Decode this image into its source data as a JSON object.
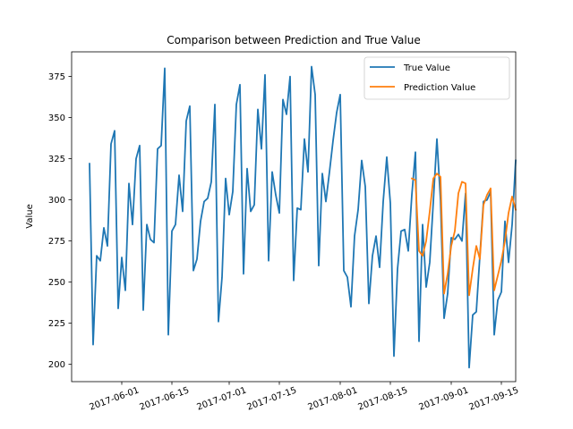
{
  "chart_data": {
    "type": "line",
    "title": "Comparison between Prediction and True Value",
    "xlabel": "",
    "ylabel": "Value",
    "x_type": "date",
    "xlim": [
      "2017-05-18",
      "2017-09-19"
    ],
    "ylim": [
      189.5,
      390
    ],
    "x_ticks": [
      "2017-06-01",
      "2017-06-15",
      "2017-07-01",
      "2017-07-15",
      "2017-08-01",
      "2017-08-15",
      "2017-09-01",
      "2017-09-15"
    ],
    "y_ticks": [
      200,
      225,
      250,
      275,
      300,
      325,
      350,
      375
    ],
    "grid": false,
    "legend_position": "top-right",
    "series": [
      {
        "name": "True Value",
        "color": "#1f77b4",
        "points": [
          [
            "2017-05-23",
            322
          ],
          [
            "2017-05-24",
            212
          ],
          [
            "2017-05-25",
            266
          ],
          [
            "2017-05-26",
            263
          ],
          [
            "2017-05-27",
            283
          ],
          [
            "2017-05-28",
            272
          ],
          [
            "2017-05-29",
            334
          ],
          [
            "2017-05-30",
            342
          ],
          [
            "2017-05-31",
            234
          ],
          [
            "2017-06-01",
            265
          ],
          [
            "2017-06-02",
            245
          ],
          [
            "2017-06-03",
            310
          ],
          [
            "2017-06-04",
            285
          ],
          [
            "2017-06-05",
            325
          ],
          [
            "2017-06-06",
            333
          ],
          [
            "2017-06-07",
            233
          ],
          [
            "2017-06-08",
            285
          ],
          [
            "2017-06-09",
            276
          ],
          [
            "2017-06-10",
            274
          ],
          [
            "2017-06-11",
            331
          ],
          [
            "2017-06-12",
            333
          ],
          [
            "2017-06-13",
            380
          ],
          [
            "2017-06-14",
            218
          ],
          [
            "2017-06-15",
            281
          ],
          [
            "2017-06-16",
            285
          ],
          [
            "2017-06-17",
            315
          ],
          [
            "2017-06-18",
            293
          ],
          [
            "2017-06-19",
            348
          ],
          [
            "2017-06-20",
            357
          ],
          [
            "2017-06-21",
            257
          ],
          [
            "2017-06-22",
            264
          ],
          [
            "2017-06-23",
            287
          ],
          [
            "2017-06-24",
            299
          ],
          [
            "2017-06-25",
            301
          ],
          [
            "2017-06-26",
            311
          ],
          [
            "2017-06-27",
            358
          ],
          [
            "2017-06-28",
            226
          ],
          [
            "2017-06-29",
            253
          ],
          [
            "2017-06-30",
            313
          ],
          [
            "2017-07-01",
            291
          ],
          [
            "2017-07-02",
            305
          ],
          [
            "2017-07-03",
            358
          ],
          [
            "2017-07-04",
            370
          ],
          [
            "2017-07-05",
            255
          ],
          [
            "2017-07-06",
            319
          ],
          [
            "2017-07-07",
            293
          ],
          [
            "2017-07-08",
            297
          ],
          [
            "2017-07-09",
            355
          ],
          [
            "2017-07-10",
            331
          ],
          [
            "2017-07-11",
            376
          ],
          [
            "2017-07-12",
            263
          ],
          [
            "2017-07-13",
            317
          ],
          [
            "2017-07-14",
            303
          ],
          [
            "2017-07-15",
            292
          ],
          [
            "2017-07-16",
            361
          ],
          [
            "2017-07-17",
            352
          ],
          [
            "2017-07-18",
            375
          ],
          [
            "2017-07-19",
            251
          ],
          [
            "2017-07-20",
            295
          ],
          [
            "2017-07-21",
            294
          ],
          [
            "2017-07-22",
            337
          ],
          [
            "2017-07-23",
            317
          ],
          [
            "2017-07-24",
            381
          ],
          [
            "2017-07-25",
            364
          ],
          [
            "2017-07-26",
            260
          ],
          [
            "2017-07-27",
            316
          ],
          [
            "2017-07-28",
            299
          ],
          [
            "2017-07-29",
            317
          ],
          [
            "2017-07-30",
            336
          ],
          [
            "2017-07-31",
            353
          ],
          [
            "2017-08-01",
            364
          ],
          [
            "2017-08-02",
            257
          ],
          [
            "2017-08-03",
            253
          ],
          [
            "2017-08-04",
            235
          ],
          [
            "2017-08-05",
            278
          ],
          [
            "2017-08-06",
            294
          ],
          [
            "2017-08-07",
            324
          ],
          [
            "2017-08-08",
            308
          ],
          [
            "2017-08-09",
            237
          ],
          [
            "2017-08-10",
            266
          ],
          [
            "2017-08-11",
            278
          ],
          [
            "2017-08-12",
            259
          ],
          [
            "2017-08-13",
            299
          ],
          [
            "2017-08-14",
            326
          ],
          [
            "2017-08-15",
            298
          ],
          [
            "2017-08-16",
            205
          ],
          [
            "2017-08-17",
            258
          ],
          [
            "2017-08-18",
            281
          ],
          [
            "2017-08-19",
            282
          ],
          [
            "2017-08-20",
            269
          ],
          [
            "2017-08-21",
            303
          ],
          [
            "2017-08-22",
            329
          ],
          [
            "2017-08-23",
            214
          ],
          [
            "2017-08-24",
            285
          ],
          [
            "2017-08-25",
            247
          ],
          [
            "2017-08-26",
            262
          ],
          [
            "2017-08-27",
            299
          ],
          [
            "2017-08-28",
            337
          ],
          [
            "2017-08-29",
            300
          ],
          [
            "2017-08-30",
            228
          ],
          [
            "2017-08-31",
            243
          ],
          [
            "2017-09-01",
            277
          ],
          [
            "2017-09-02",
            276
          ],
          [
            "2017-09-03",
            279
          ],
          [
            "2017-09-04",
            275
          ],
          [
            "2017-09-05",
            304
          ],
          [
            "2017-09-06",
            198
          ],
          [
            "2017-09-07",
            230
          ],
          [
            "2017-09-08",
            232
          ],
          [
            "2017-09-09",
            266
          ],
          [
            "2017-09-10",
            299
          ],
          [
            "2017-09-11",
            300
          ],
          [
            "2017-09-12",
            305
          ],
          [
            "2017-09-13",
            218
          ],
          [
            "2017-09-14",
            239
          ],
          [
            "2017-09-15",
            244
          ],
          [
            "2017-09-16",
            287
          ],
          [
            "2017-09-17",
            262
          ],
          [
            "2017-09-18",
            285
          ],
          [
            "2017-09-19",
            324
          ]
        ]
      },
      {
        "name": "Prediction Value",
        "color": "#ff7f0e",
        "points": [
          [
            "2017-08-21",
            313
          ],
          [
            "2017-08-22",
            312
          ],
          [
            "2017-08-23",
            269
          ],
          [
            "2017-08-24",
            266
          ],
          [
            "2017-08-25",
            275
          ],
          [
            "2017-08-26",
            293
          ],
          [
            "2017-08-27",
            313
          ],
          [
            "2017-08-28",
            316
          ],
          [
            "2017-08-29",
            314
          ],
          [
            "2017-08-30",
            243
          ],
          [
            "2017-08-31",
            255
          ],
          [
            "2017-09-01",
            272
          ],
          [
            "2017-09-02",
            281
          ],
          [
            "2017-09-03",
            304
          ],
          [
            "2017-09-04",
            311
          ],
          [
            "2017-09-05",
            310
          ],
          [
            "2017-09-06",
            242
          ],
          [
            "2017-09-07",
            258
          ],
          [
            "2017-09-08",
            272
          ],
          [
            "2017-09-09",
            264
          ],
          [
            "2017-09-10",
            297
          ],
          [
            "2017-09-11",
            303
          ],
          [
            "2017-09-12",
            307
          ],
          [
            "2017-09-13",
            245
          ],
          [
            "2017-09-14",
            254
          ],
          [
            "2017-09-15",
            263
          ],
          [
            "2017-09-16",
            275
          ],
          [
            "2017-09-17",
            292
          ],
          [
            "2017-09-18",
            302
          ],
          [
            "2017-09-19",
            294
          ]
        ]
      }
    ]
  }
}
